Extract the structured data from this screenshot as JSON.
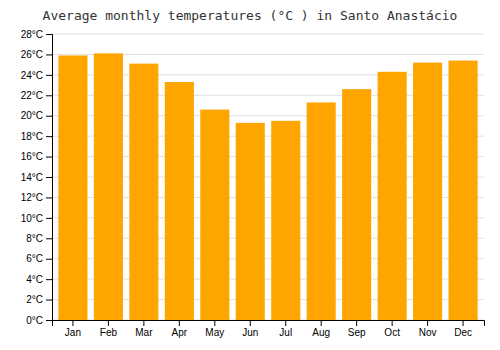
{
  "chart_data": {
    "type": "bar",
    "title": "Average monthly temperatures (°C ) in Santo Anastácio",
    "categories": [
      "Jan",
      "Feb",
      "Mar",
      "Apr",
      "May",
      "Jun",
      "Jul",
      "Aug",
      "Sep",
      "Oct",
      "Nov",
      "Dec"
    ],
    "values": [
      25.9,
      26.1,
      25.1,
      23.3,
      20.6,
      19.3,
      19.5,
      21.3,
      22.6,
      24.3,
      25.2,
      25.4
    ],
    "color": "#FFA500",
    "ylim": [
      0,
      28
    ],
    "yticks": [
      {
        "value": 0,
        "label": "0°C"
      },
      {
        "value": 2,
        "label": "2°C"
      },
      {
        "value": 4,
        "label": "4°C"
      },
      {
        "value": 6,
        "label": "6°C"
      },
      {
        "value": 8,
        "label": "8°C"
      },
      {
        "value": 10,
        "label": "10°C"
      },
      {
        "value": 12,
        "label": "12°C"
      },
      {
        "value": 14,
        "label": "14°C"
      },
      {
        "value": 16,
        "label": "16°C"
      },
      {
        "value": 18,
        "label": "18°C"
      },
      {
        "value": 20,
        "label": "20°C"
      },
      {
        "value": 22,
        "label": "22°C"
      },
      {
        "value": 24,
        "label": "24°C"
      },
      {
        "value": 26,
        "label": "26°C"
      },
      {
        "value": 28,
        "label": "28°C"
      }
    ],
    "grid": true
  }
}
